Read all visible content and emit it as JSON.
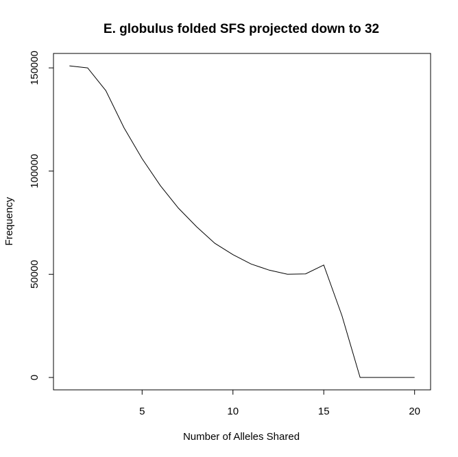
{
  "chart_data": {
    "type": "line",
    "title": "E. globulus folded SFS projected down to 32",
    "xlabel": "Number of Alleles Shared",
    "ylabel": "Frequency",
    "xlim": [
      0.12,
      20.88
    ],
    "ylim": [
      -6000,
      157000
    ],
    "xticks": [
      5,
      10,
      15,
      20
    ],
    "yticks": [
      0,
      50000,
      100000,
      150000
    ],
    "grid": false,
    "series": [
      {
        "x": [
          1,
          2,
          3,
          4,
          5,
          6,
          7,
          8,
          9,
          10,
          11,
          12,
          13,
          14,
          15,
          16,
          17,
          18,
          19,
          20
        ],
        "values": [
          151000,
          150000,
          139000,
          121000,
          106000,
          93000,
          82000,
          73000,
          65000,
          59500,
          55000,
          52000,
          50000,
          50200,
          54500,
          30000,
          0,
          0,
          0,
          0
        ]
      }
    ]
  }
}
